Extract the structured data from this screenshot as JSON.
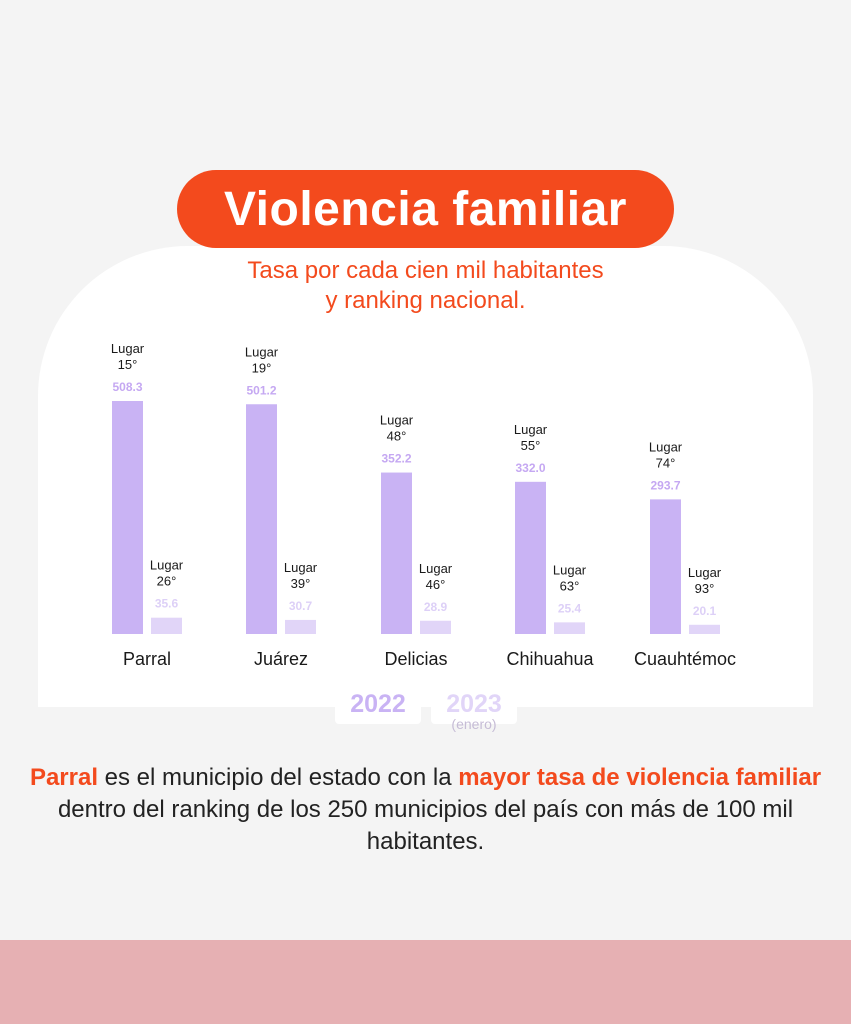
{
  "title": "Violencia familiar",
  "subtitle": [
    "Tasa por cada cien mil habitantes",
    "y ranking nacional."
  ],
  "colors": {
    "accent": "#f34a1d",
    "bar_2022": "#c9b3f4",
    "bar_2023": "#e1d5f8",
    "label_2022": "#c5a8f2",
    "label_2023": "#ddd0f7",
    "band": "#e6b0b3"
  },
  "chart_data": {
    "type": "bar",
    "categories": [
      "Parral",
      "Juárez",
      "Delicias",
      "Chihuahua",
      "Cuauhtémoc"
    ],
    "series": [
      {
        "name": "2022",
        "values": [
          508.3,
          501.2,
          352.2,
          332.0,
          293.7
        ],
        "labels": [
          "508.3",
          "501.2",
          "352.2",
          "332.0",
          "293.7"
        ],
        "rank_labels": [
          "Lugar",
          "Lugar",
          "Lugar",
          "Lugar",
          "Lugar"
        ],
        "ranks": [
          "15°",
          "19°",
          "48°",
          "55°",
          "74°"
        ]
      },
      {
        "name": "2023",
        "values": [
          35.6,
          30.7,
          28.9,
          25.4,
          20.1
        ],
        "labels": [
          "35.6",
          "30.7",
          "28.9",
          "25.4",
          "20.1"
        ],
        "rank_labels": [
          "Lugar",
          "Lugar",
          "Lugar",
          "Lugar",
          "Lugar"
        ],
        "ranks": [
          "26°",
          "39°",
          "46°",
          "63°",
          "93°"
        ]
      }
    ],
    "ylim": [
      0,
      508.3
    ],
    "grid": false,
    "legend": "bottom-center"
  },
  "legend": {
    "y2022": "2022",
    "y2023": "2023",
    "y2023_note": "(enero)"
  },
  "footer": {
    "part1": "Parral",
    "part2": " es el municipio del estado con la ",
    "part3": "mayor tasa de violencia familiar",
    "part4": " dentro del ranking de los 250 municipios del país con más de 100 mil habitantes."
  }
}
